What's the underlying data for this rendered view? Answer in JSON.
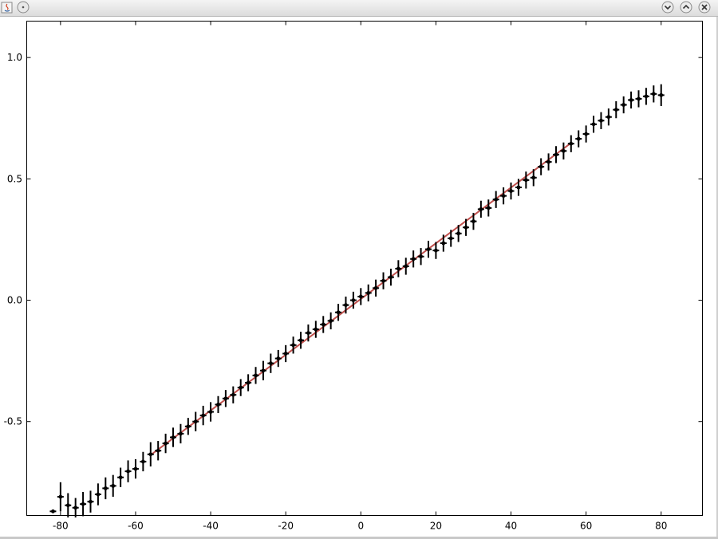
{
  "window": {
    "icons": [
      "java-app-icon",
      "window-menu-icon",
      "minimize-icon",
      "maximize-icon",
      "close-icon"
    ]
  },
  "chart_data": {
    "type": "scatter",
    "x_ticks": [
      -80,
      -60,
      -40,
      -20,
      0,
      20,
      40,
      60,
      80
    ],
    "x_tick_labels": [
      "-80",
      "-60",
      "-40",
      "-20",
      "0",
      "20",
      "40",
      "60",
      "80"
    ],
    "y_ticks": [
      -0.5,
      0.0,
      0.5,
      1.0
    ],
    "y_tick_labels": [
      "-0.5",
      "0.0",
      "0.5",
      "1.0"
    ],
    "xlim": [
      -89,
      91
    ],
    "ylim": [
      -0.887,
      1.15
    ],
    "grid": false,
    "colors": {
      "points": "#000000",
      "fit_line": "#c0504d"
    },
    "series": [
      {
        "x": [
          -82,
          -80,
          -78,
          -76,
          -74,
          -72,
          -70,
          -68,
          -66,
          -64,
          -62,
          -60,
          -58,
          -56,
          -54,
          -52,
          -50,
          -48,
          -46,
          -44,
          -42,
          -40,
          -38,
          -36,
          -34,
          -32,
          -30,
          -28,
          -26,
          -24,
          -22,
          -20,
          -18,
          -16,
          -14,
          -12,
          -10,
          -8,
          -6,
          -4,
          -2,
          0,
          2,
          4,
          6,
          8,
          10,
          12,
          14,
          16,
          18,
          20,
          22,
          24,
          26,
          28,
          30,
          32,
          34,
          36,
          38,
          40,
          42,
          44,
          46,
          48,
          50,
          52,
          54,
          56,
          58,
          60,
          62,
          64,
          66,
          68,
          70,
          72,
          74,
          76,
          78,
          80
        ],
        "y": [
          -0.87,
          -0.81,
          -0.845,
          -0.855,
          -0.84,
          -0.83,
          -0.8,
          -0.775,
          -0.765,
          -0.73,
          -0.705,
          -0.695,
          -0.665,
          -0.635,
          -0.62,
          -0.59,
          -0.565,
          -0.55,
          -0.52,
          -0.5,
          -0.475,
          -0.46,
          -0.43,
          -0.405,
          -0.39,
          -0.36,
          -0.34,
          -0.31,
          -0.29,
          -0.26,
          -0.24,
          -0.22,
          -0.185,
          -0.165,
          -0.135,
          -0.12,
          -0.1,
          -0.085,
          -0.05,
          -0.02,
          0.0,
          0.015,
          0.03,
          0.05,
          0.08,
          0.095,
          0.13,
          0.14,
          0.17,
          0.18,
          0.21,
          0.205,
          0.235,
          0.255,
          0.275,
          0.3,
          0.325,
          0.375,
          0.38,
          0.415,
          0.43,
          0.45,
          0.465,
          0.495,
          0.505,
          0.55,
          0.57,
          0.6,
          0.615,
          0.645,
          0.665,
          0.685,
          0.725,
          0.74,
          0.755,
          0.785,
          0.805,
          0.825,
          0.83,
          0.84,
          0.85,
          0.845
        ],
        "yerr": [
          0.004,
          0.06,
          0.05,
          0.04,
          0.05,
          0.045,
          0.045,
          0.045,
          0.045,
          0.04,
          0.045,
          0.04,
          0.04,
          0.05,
          0.04,
          0.04,
          0.04,
          0.04,
          0.035,
          0.04,
          0.04,
          0.04,
          0.035,
          0.035,
          0.035,
          0.035,
          0.035,
          0.035,
          0.04,
          0.04,
          0.035,
          0.035,
          0.035,
          0.035,
          0.035,
          0.035,
          0.035,
          0.035,
          0.035,
          0.035,
          0.035,
          0.035,
          0.035,
          0.035,
          0.035,
          0.035,
          0.035,
          0.035,
          0.035,
          0.035,
          0.035,
          0.035,
          0.035,
          0.035,
          0.035,
          0.035,
          0.035,
          0.035,
          0.035,
          0.035,
          0.035,
          0.035,
          0.035,
          0.035,
          0.035,
          0.035,
          0.035,
          0.035,
          0.035,
          0.035,
          0.035,
          0.035,
          0.035,
          0.035,
          0.035,
          0.035,
          0.035,
          0.035,
          0.035,
          0.035,
          0.035,
          0.045
        ]
      }
    ],
    "fit_line": {
      "slope": 0.01148,
      "intercept": 0.005,
      "x_range": [
        -56,
        56
      ]
    }
  }
}
